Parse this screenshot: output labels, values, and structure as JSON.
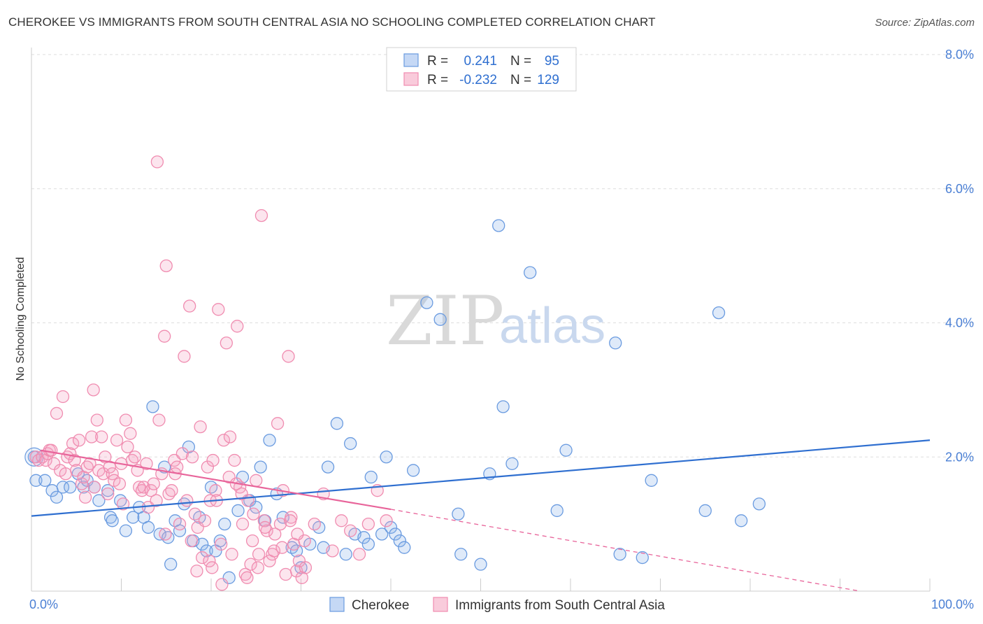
{
  "title": "CHEROKEE VS IMMIGRANTS FROM SOUTH CENTRAL ASIA NO SCHOOLING COMPLETED CORRELATION CHART",
  "source": "Source: ZipAtlas.com",
  "watermark": {
    "zip": "ZIP",
    "atlas": "atlas"
  },
  "legend": {
    "rows": [
      {
        "r_label": "R =",
        "r_value": "0.241",
        "n_label": "N =",
        "n_value": "95",
        "color": "#6a9be0"
      },
      {
        "r_label": "R =",
        "r_value": "-0.232",
        "n_label": "N =",
        "n_value": "129",
        "color": "#f08cb0"
      }
    ]
  },
  "chart_data": {
    "type": "scatter",
    "ylabel": "No Schooling Completed",
    "xlim": [
      0,
      100
    ],
    "ylim": [
      0,
      8.0
    ],
    "x_tick_labels": [
      "0.0%",
      "100.0%"
    ],
    "y_ticks": [
      2.0,
      4.0,
      6.0,
      8.0
    ],
    "y_tick_labels": [
      "2.0%",
      "4.0%",
      "6.0%",
      "8.0%"
    ],
    "grid": true,
    "legend_position": "top-center",
    "series": [
      {
        "name": "Cherokee",
        "color": "#6a9be0",
        "trend": {
          "x": [
            0,
            100
          ],
          "y": [
            1.12,
            2.25
          ],
          "dashed_from": null
        },
        "points": [
          [
            0.3,
            2.0
          ],
          [
            0.5,
            1.65
          ],
          [
            1.5,
            1.65
          ],
          [
            2.3,
            1.5
          ],
          [
            2.8,
            1.4
          ],
          [
            3.5,
            1.55
          ],
          [
            4.3,
            1.55
          ],
          [
            5.2,
            1.75
          ],
          [
            5.8,
            1.55
          ],
          [
            6.2,
            1.65
          ],
          [
            7.0,
            1.55
          ],
          [
            7.5,
            1.35
          ],
          [
            8.5,
            1.5
          ],
          [
            8.8,
            1.1
          ],
          [
            9.0,
            1.05
          ],
          [
            9.9,
            1.35
          ],
          [
            10.5,
            0.9
          ],
          [
            11.3,
            1.1
          ],
          [
            12.0,
            1.25
          ],
          [
            12.5,
            1.1
          ],
          [
            13.0,
            0.95
          ],
          [
            13.5,
            2.75
          ],
          [
            14.3,
            0.85
          ],
          [
            14.8,
            1.85
          ],
          [
            15.2,
            0.8
          ],
          [
            15.5,
            0.4
          ],
          [
            16.0,
            1.05
          ],
          [
            16.5,
            0.9
          ],
          [
            17.0,
            1.3
          ],
          [
            17.5,
            2.15
          ],
          [
            18.0,
            0.75
          ],
          [
            18.7,
            1.1
          ],
          [
            19.0,
            0.7
          ],
          [
            19.5,
            0.6
          ],
          [
            20.0,
            1.55
          ],
          [
            20.5,
            0.6
          ],
          [
            21.0,
            0.75
          ],
          [
            21.5,
            1.0
          ],
          [
            22.0,
            0.2
          ],
          [
            23.0,
            1.2
          ],
          [
            23.5,
            1.7
          ],
          [
            24.3,
            1.35
          ],
          [
            25.0,
            1.25
          ],
          [
            25.5,
            1.85
          ],
          [
            26.0,
            1.05
          ],
          [
            26.5,
            2.25
          ],
          [
            27.3,
            1.45
          ],
          [
            28.0,
            1.1
          ],
          [
            29.0,
            0.65
          ],
          [
            29.5,
            0.6
          ],
          [
            30.0,
            0.35
          ],
          [
            31.0,
            0.7
          ],
          [
            32.0,
            0.95
          ],
          [
            32.5,
            0.65
          ],
          [
            33.0,
            1.85
          ],
          [
            34.0,
            2.5
          ],
          [
            35.0,
            0.55
          ],
          [
            35.5,
            2.2
          ],
          [
            36.0,
            0.85
          ],
          [
            37.0,
            0.8
          ],
          [
            37.5,
            0.7
          ],
          [
            37.8,
            1.7
          ],
          [
            39.0,
            0.85
          ],
          [
            39.5,
            2.0
          ],
          [
            40.0,
            0.95
          ],
          [
            40.5,
            0.85
          ],
          [
            41.0,
            0.75
          ],
          [
            41.5,
            0.65
          ],
          [
            42.5,
            1.8
          ],
          [
            44.0,
            4.3
          ],
          [
            45.5,
            4.05
          ],
          [
            47.5,
            1.15
          ],
          [
            47.8,
            0.55
          ],
          [
            50.0,
            0.4
          ],
          [
            51.0,
            1.75
          ],
          [
            52.0,
            5.45
          ],
          [
            52.5,
            2.75
          ],
          [
            53.5,
            1.9
          ],
          [
            55.5,
            4.75
          ],
          [
            58.5,
            1.2
          ],
          [
            59.5,
            2.1
          ],
          [
            65.0,
            3.7
          ],
          [
            65.5,
            0.55
          ],
          [
            68.0,
            0.5
          ],
          [
            69.0,
            1.65
          ],
          [
            75.0,
            1.2
          ],
          [
            76.5,
            4.15
          ],
          [
            79.0,
            1.05
          ],
          [
            81.0,
            1.3
          ]
        ]
      },
      {
        "name": "Immigrants from South Central Asia",
        "color": "#f08cb0",
        "trend": {
          "x": [
            1,
            40,
            100
          ],
          "y": [
            2.1,
            1.22,
            0.0
          ],
          "dashed_from": 40
        },
        "points": [
          [
            0.5,
            2.0
          ],
          [
            0.8,
            1.95
          ],
          [
            1.2,
            2.0
          ],
          [
            1.6,
            1.95
          ],
          [
            1.8,
            2.05
          ],
          [
            2.0,
            2.1
          ],
          [
            2.2,
            2.1
          ],
          [
            2.5,
            1.9
          ],
          [
            2.8,
            2.65
          ],
          [
            3.2,
            1.8
          ],
          [
            3.5,
            2.9
          ],
          [
            3.8,
            1.75
          ],
          [
            4.0,
            2.0
          ],
          [
            4.3,
            2.05
          ],
          [
            4.6,
            2.2
          ],
          [
            4.8,
            1.95
          ],
          [
            5.0,
            1.8
          ],
          [
            5.3,
            2.25
          ],
          [
            5.6,
            1.6
          ],
          [
            5.8,
            1.7
          ],
          [
            6.0,
            1.4
          ],
          [
            6.2,
            1.85
          ],
          [
            6.5,
            1.9
          ],
          [
            6.7,
            2.3
          ],
          [
            6.9,
            3.0
          ],
          [
            7.0,
            1.55
          ],
          [
            7.3,
            2.55
          ],
          [
            7.5,
            1.8
          ],
          [
            7.8,
            2.3
          ],
          [
            8.0,
            1.75
          ],
          [
            8.2,
            2.0
          ],
          [
            8.5,
            1.45
          ],
          [
            8.7,
            1.85
          ],
          [
            9.0,
            1.75
          ],
          [
            9.2,
            1.65
          ],
          [
            9.5,
            2.25
          ],
          [
            9.8,
            1.6
          ],
          [
            10.0,
            1.9
          ],
          [
            10.2,
            1.3
          ],
          [
            10.5,
            2.55
          ],
          [
            10.7,
            2.15
          ],
          [
            11.0,
            2.35
          ],
          [
            11.2,
            1.95
          ],
          [
            11.5,
            2.0
          ],
          [
            11.8,
            1.8
          ],
          [
            12.0,
            1.55
          ],
          [
            12.3,
            1.5
          ],
          [
            12.5,
            1.55
          ],
          [
            12.8,
            1.9
          ],
          [
            13.0,
            1.25
          ],
          [
            13.3,
            1.5
          ],
          [
            13.6,
            1.6
          ],
          [
            13.9,
            1.35
          ],
          [
            14.0,
            6.4
          ],
          [
            14.2,
            2.55
          ],
          [
            14.5,
            1.75
          ],
          [
            14.8,
            3.8
          ],
          [
            15.0,
            4.85
          ],
          [
            15.3,
            1.45
          ],
          [
            15.6,
            1.5
          ],
          [
            15.9,
            1.95
          ],
          [
            16.2,
            1.85
          ],
          [
            16.5,
            1.0
          ],
          [
            16.8,
            2.05
          ],
          [
            17.0,
            3.5
          ],
          [
            17.3,
            1.35
          ],
          [
            17.6,
            4.25
          ],
          [
            17.9,
            2.0
          ],
          [
            18.2,
            1.15
          ],
          [
            18.5,
            0.95
          ],
          [
            18.8,
            2.45
          ],
          [
            19.0,
            0.5
          ],
          [
            19.3,
            1.05
          ],
          [
            19.6,
            1.85
          ],
          [
            19.9,
            1.35
          ],
          [
            20.2,
            1.95
          ],
          [
            20.5,
            1.5
          ],
          [
            20.8,
            4.2
          ],
          [
            21.1,
            0.7
          ],
          [
            21.4,
            2.25
          ],
          [
            21.7,
            3.7
          ],
          [
            22.0,
            1.7
          ],
          [
            22.3,
            0.55
          ],
          [
            22.6,
            1.95
          ],
          [
            22.9,
            3.95
          ],
          [
            23.2,
            1.55
          ],
          [
            23.5,
            1.0
          ],
          [
            23.8,
            0.25
          ],
          [
            24.1,
            1.35
          ],
          [
            24.4,
            0.4
          ],
          [
            24.7,
            1.15
          ],
          [
            25.0,
            1.65
          ],
          [
            25.3,
            0.55
          ],
          [
            25.6,
            5.6
          ],
          [
            25.9,
            1.05
          ],
          [
            26.2,
            0.9
          ],
          [
            26.5,
            0.45
          ],
          [
            26.8,
            0.55
          ],
          [
            27.1,
            0.85
          ],
          [
            27.4,
            2.5
          ],
          [
            27.7,
            1.0
          ],
          [
            28.0,
            1.5
          ],
          [
            28.3,
            0.25
          ],
          [
            28.6,
            3.5
          ],
          [
            28.9,
            1.1
          ],
          [
            29.2,
            0.7
          ],
          [
            29.5,
            0.3
          ],
          [
            29.8,
            0.45
          ],
          [
            30.1,
            0.2
          ],
          [
            30.4,
            0.75
          ],
          [
            14.9,
            0.85
          ],
          [
            16.0,
            1.75
          ],
          [
            17.8,
            0.75
          ],
          [
            18.4,
            0.3
          ],
          [
            19.8,
            0.45
          ],
          [
            20.1,
            0.35
          ],
          [
            20.6,
            1.35
          ],
          [
            21.2,
            0.1
          ],
          [
            22.1,
            2.3
          ],
          [
            22.8,
            1.6
          ],
          [
            23.4,
            1.45
          ],
          [
            24.0,
            0.2
          ],
          [
            24.6,
            0.75
          ],
          [
            25.2,
            0.35
          ],
          [
            26.0,
            0.95
          ],
          [
            27.0,
            0.6
          ],
          [
            27.9,
            0.65
          ],
          [
            28.8,
            1.05
          ],
          [
            29.6,
            0.85
          ],
          [
            30.5,
            0.35
          ],
          [
            31.5,
            1.0
          ],
          [
            32.5,
            1.45
          ],
          [
            33.5,
            0.6
          ],
          [
            34.5,
            1.05
          ],
          [
            35.5,
            0.9
          ],
          [
            36.5,
            0.55
          ],
          [
            37.5,
            1.0
          ],
          [
            38.5,
            1.5
          ],
          [
            39.5,
            1.05
          ]
        ]
      }
    ]
  },
  "bottom_legend": [
    {
      "label": "Cherokee",
      "color": "#6a9be0"
    },
    {
      "label": "Immigrants from South Central Asia",
      "color": "#f08cb0"
    }
  ]
}
